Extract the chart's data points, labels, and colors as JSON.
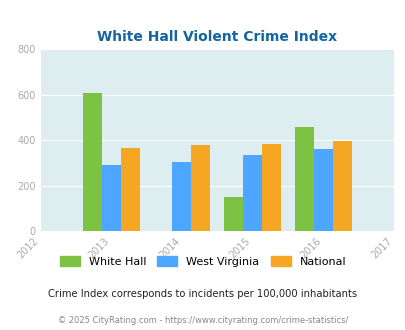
{
  "title": "White Hall Violent Crime Index",
  "years": [
    2013,
    2014,
    2015,
    2016
  ],
  "white_hall": [
    608,
    0,
    152,
    458
  ],
  "west_virginia": [
    293,
    305,
    337,
    360
  ],
  "national": [
    368,
    378,
    383,
    398
  ],
  "colors": {
    "white_hall": "#7dc242",
    "west_virginia": "#4da6ff",
    "national": "#f5a623"
  },
  "xlim": [
    2012,
    2017
  ],
  "ylim": [
    0,
    800
  ],
  "yticks": [
    0,
    200,
    400,
    600,
    800
  ],
  "xticks": [
    2012,
    2013,
    2014,
    2015,
    2016,
    2017
  ],
  "bg_color": "#deeef0",
  "legend_labels": [
    "White Hall",
    "West Virginia",
    "National"
  ],
  "footnote1": "Crime Index corresponds to incidents per 100,000 inhabitants",
  "footnote2": "© 2025 CityRating.com - https://www.cityrating.com/crime-statistics/",
  "bar_width": 0.27,
  "title_color": "#1464a0",
  "footnote1_color": "#222222",
  "footnote2_color": "#888888",
  "tick_color": "#aaaaaa"
}
